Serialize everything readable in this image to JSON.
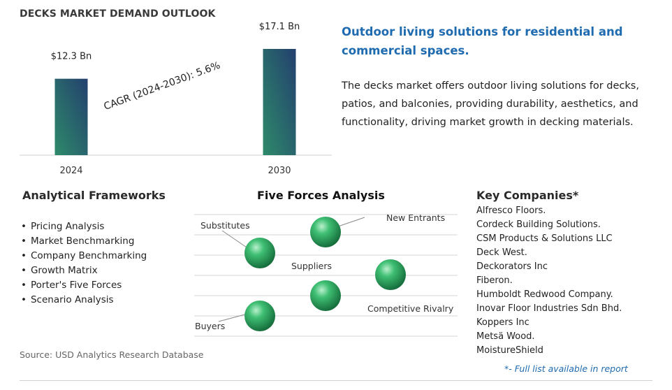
{
  "chart_data": {
    "type": "bar",
    "title": "DECKS MARKET DEMAND OUTLOOK",
    "categories": [
      "2024",
      "2030"
    ],
    "values": [
      12.3,
      17.1
    ],
    "data_labels": [
      "$12.3 Bn",
      "$17.1 Bn"
    ],
    "annotation": "CAGR (2024-2030):  5.6%",
    "ylim": [
      0,
      17.1
    ],
    "grid": false,
    "bar_gradient": [
      "#2e8a6a",
      "#23406e"
    ]
  },
  "headline": "Outdoor living solutions for residential and commercial spaces.",
  "description": "The decks market offers outdoor living solutions for decks, patios, and balconies, providing durability, aesthetics, and functionality, driving market growth in decking materials.",
  "frameworks": {
    "title": "Analytical Frameworks",
    "items": [
      "Pricing Analysis",
      "Market Benchmarking",
      "Company Benchmarking",
      "Growth Matrix",
      "Porter's Five Forces",
      "Scenario Analysis"
    ]
  },
  "five_forces": {
    "title": "Five Forces Analysis",
    "labels": {
      "substitutes": "Substitutes",
      "new_entrants": "New Entrants",
      "suppliers": "Suppliers",
      "competitive_rivalry": "Competitive Rivalry",
      "buyers": "Buyers"
    },
    "sphere_color": "#2e9e5e"
  },
  "companies": {
    "title": "Key Companies*",
    "items": [
      "Alfresco Floors.",
      "Cordeck Building Solutions.",
      "CSM Products & Solutions LLC",
      "Deck West.",
      "Deckorators Inc",
      "Fiberon.",
      "Humboldt Redwood Company.",
      "Inovar Floor Industries Sdn Bhd.",
      "Koppers Inc",
      "Metsä Wood.",
      "MoistureShield"
    ],
    "note": "*- Full list available in report"
  },
  "source": "Source: USD Analytics Research Database",
  "colors": {
    "accent": "#1f6bb0"
  }
}
